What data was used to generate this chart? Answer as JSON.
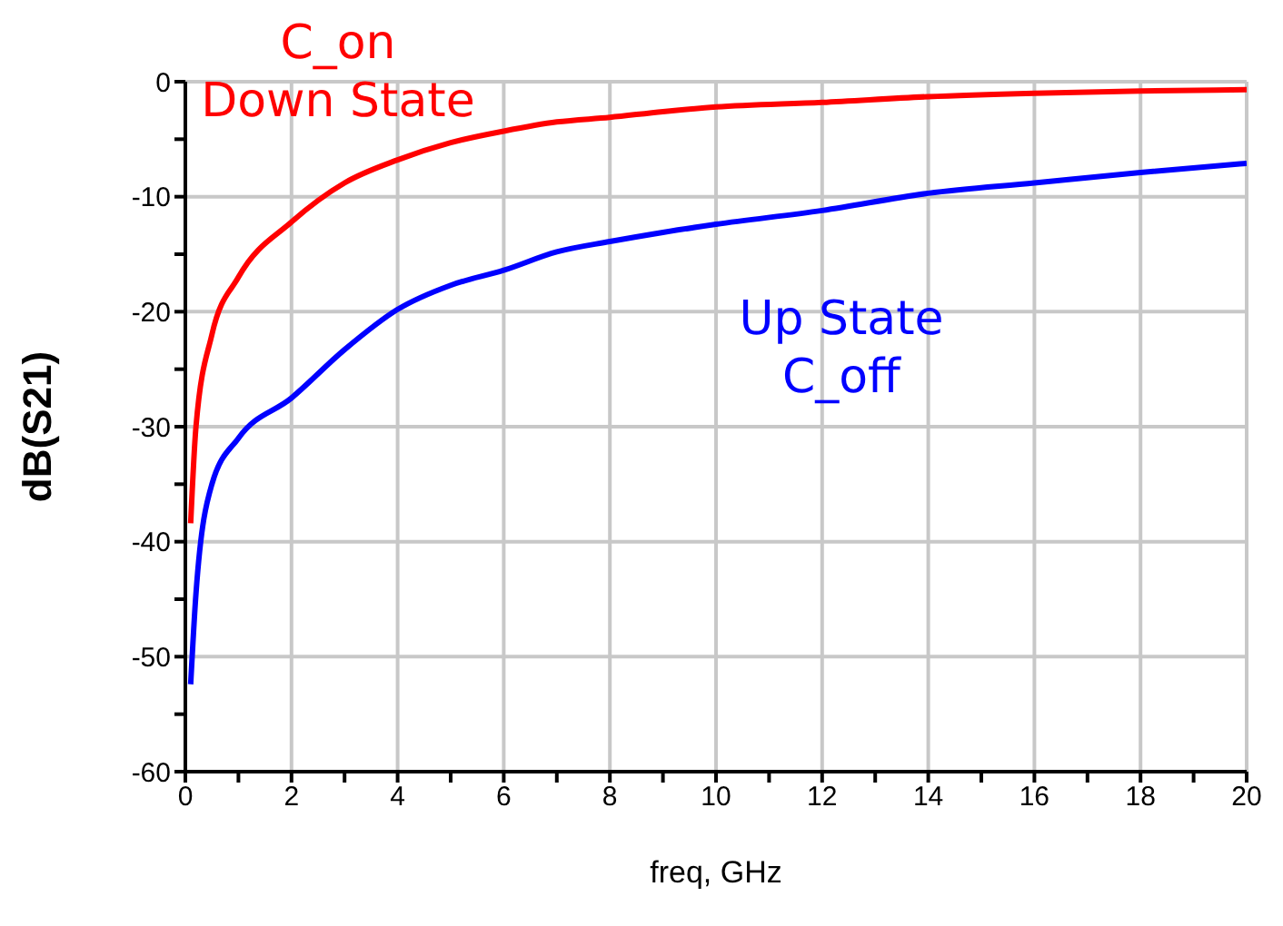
{
  "chart_data": {
    "type": "line",
    "xlabel": "freq, GHz",
    "ylabel": "dB(S21)",
    "x": [
      0.1,
      0.2,
      0.5,
      1,
      2,
      3,
      4,
      5,
      6,
      7,
      8,
      9,
      10,
      12,
      14,
      16,
      18,
      20
    ],
    "series": [
      {
        "name": "C_on\nDown State",
        "color": "#ff0000",
        "values": [
          -38.4,
          -30,
          -22,
          -17,
          -12.2,
          -8.8,
          -6.8,
          -5.3,
          -4.3,
          -3.5,
          -3.1,
          -2.6,
          -2.2,
          -1.8,
          -1.3,
          -1,
          -0.8,
          -0.7
        ]
      },
      {
        "name": "Up State\nC_off",
        "color": "#0000ff",
        "values": [
          -52.4,
          -44.5,
          -35,
          -31,
          -27.5,
          -23.3,
          -19.8,
          -17.7,
          -16.4,
          -14.8,
          -13.9,
          -13.1,
          -12.4,
          -11.2,
          -9.7,
          -8.8,
          -7.9,
          -7.1
        ]
      }
    ],
    "xlim": [
      0,
      20
    ],
    "xticks": [
      0,
      {
        "value": 1,
        "label": null
      },
      2,
      {
        "value": 3,
        "label": null
      },
      4,
      {
        "value": 5,
        "label": null
      },
      6,
      {
        "value": 7,
        "label": null
      },
      8,
      {
        "value": 9,
        "label": null
      },
      10,
      {
        "value": 11,
        "label": null
      },
      12,
      {
        "value": 13,
        "label": null
      },
      14,
      {
        "value": 15,
        "label": null
      },
      16,
      {
        "value": 17,
        "label": null
      },
      18,
      {
        "value": 19,
        "label": null
      },
      20
    ],
    "ylim": [
      -60,
      0
    ],
    "yticks": [
      -60,
      {
        "value": -55,
        "label": null
      },
      -50,
      {
        "value": -45,
        "label": null
      },
      -40,
      {
        "value": -35,
        "label": null
      },
      -30,
      {
        "value": -25,
        "label": null
      },
      -20,
      {
        "value": -15,
        "label": null
      },
      -10,
      {
        "value": -5,
        "label": null
      },
      0
    ],
    "grid": true,
    "legend": false,
    "marker": "none",
    "line_style": "solid"
  }
}
